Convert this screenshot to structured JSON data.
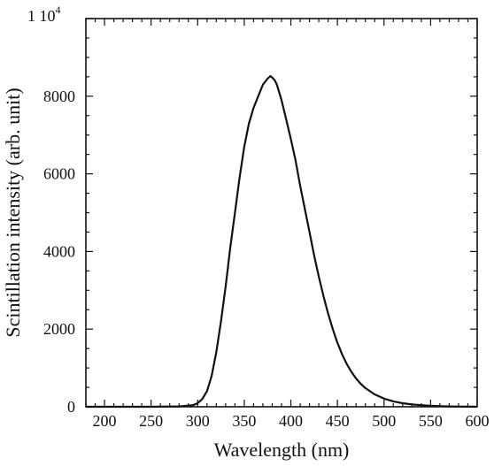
{
  "chart_data": {
    "type": "line",
    "title": "",
    "xlabel": "Wavelength (nm)",
    "ylabel": "Scintillation intensity (arb. unit)",
    "xlim": [
      180,
      600
    ],
    "ylim": [
      0,
      10000
    ],
    "x_ticks": [
      200,
      250,
      300,
      350,
      400,
      450,
      500,
      550,
      600
    ],
    "y_ticks": [
      0,
      2000,
      4000,
      6000,
      8000
    ],
    "y_top_label": {
      "mantissa": "1 10",
      "exponent": "4"
    },
    "grid": false,
    "legend": "none",
    "series": [
      {
        "x": [
          180,
          200,
          250,
          280,
          295,
          300,
          305,
          310,
          315,
          320,
          325,
          330,
          335,
          340,
          345,
          350,
          355,
          360,
          365,
          370,
          375,
          378,
          380,
          383,
          385,
          390,
          395,
          400,
          405,
          410,
          415,
          420,
          425,
          430,
          435,
          440,
          445,
          450,
          455,
          460,
          465,
          470,
          475,
          480,
          490,
          500,
          510,
          520,
          530,
          540,
          550,
          560,
          570,
          580,
          590,
          600
        ],
        "y": [
          0,
          0,
          0,
          10,
          40,
          90,
          200,
          400,
          800,
          1400,
          2200,
          3100,
          4100,
          5000,
          5900,
          6700,
          7300,
          7700,
          8000,
          8300,
          8450,
          8520,
          8480,
          8400,
          8300,
          7900,
          7400,
          6900,
          6350,
          5700,
          5100,
          4500,
          3900,
          3350,
          2850,
          2400,
          2000,
          1650,
          1350,
          1100,
          900,
          730,
          590,
          480,
          320,
          210,
          140,
          90,
          60,
          40,
          25,
          15,
          10,
          5,
          2,
          0
        ]
      }
    ]
  }
}
